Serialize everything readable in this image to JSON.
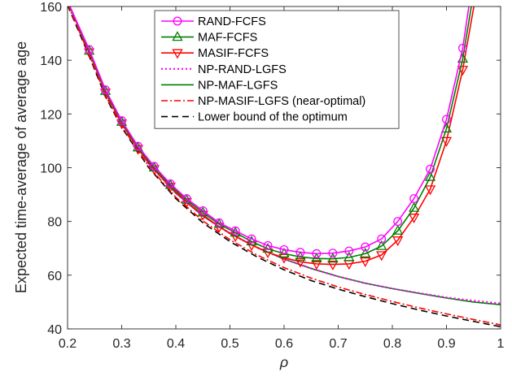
{
  "chart_data": {
    "type": "line",
    "title": "",
    "xlabel": "ρ",
    "ylabel": "Expected time-average of average age",
    "xlim": [
      0.2,
      1.0
    ],
    "ylim": [
      40,
      160
    ],
    "xticks": [
      "0.2",
      "0.3",
      "0.4",
      "0.5",
      "0.6",
      "0.7",
      "0.8",
      "0.9",
      "1"
    ],
    "yticks": [
      "40",
      "60",
      "80",
      "100",
      "120",
      "140",
      "160"
    ],
    "grid": false,
    "legend_position": "top-center",
    "series": [
      {
        "name": "RAND-FCFS",
        "color": "#ff00ff",
        "line": "solid",
        "marker": "circle",
        "x": [
          0.2,
          0.24,
          0.27,
          0.3,
          0.33,
          0.36,
          0.39,
          0.42,
          0.45,
          0.48,
          0.51,
          0.54,
          0.57,
          0.6,
          0.63,
          0.66,
          0.69,
          0.72,
          0.75,
          0.78,
          0.81,
          0.84,
          0.87,
          0.9,
          0.93,
          0.945
        ],
        "y": [
          162,
          144,
          129,
          117.5,
          108,
          100.5,
          94,
          88.5,
          84,
          79.5,
          76.5,
          73.5,
          71,
          69.5,
          68.5,
          68,
          68.2,
          69,
          70.5,
          73.5,
          80,
          88.5,
          99.5,
          118,
          144.5,
          165
        ]
      },
      {
        "name": "MAF-FCFS",
        "color": "#007f00",
        "line": "solid",
        "marker": "triangle-up",
        "x": [
          0.2,
          0.24,
          0.27,
          0.3,
          0.33,
          0.36,
          0.39,
          0.42,
          0.45,
          0.48,
          0.51,
          0.54,
          0.57,
          0.6,
          0.63,
          0.66,
          0.69,
          0.72,
          0.75,
          0.78,
          0.81,
          0.84,
          0.87,
          0.9,
          0.93,
          0.95
        ],
        "y": [
          162,
          143.5,
          128.5,
          117,
          107.5,
          100,
          93.5,
          88,
          83.3,
          79,
          75.8,
          72.5,
          69.8,
          68,
          66.8,
          66.2,
          66.1,
          66.6,
          68,
          70.8,
          76.5,
          85,
          96.5,
          114.5,
          140.5,
          165
        ]
      },
      {
        "name": "MASIF-FCFS",
        "color": "#ff0000",
        "line": "solid",
        "marker": "triangle-down",
        "x": [
          0.2,
          0.24,
          0.27,
          0.3,
          0.33,
          0.36,
          0.39,
          0.42,
          0.45,
          0.48,
          0.51,
          0.54,
          0.57,
          0.6,
          0.63,
          0.66,
          0.69,
          0.72,
          0.75,
          0.78,
          0.81,
          0.84,
          0.87,
          0.9,
          0.93,
          0.955
        ],
        "y": [
          162,
          143,
          128,
          116.5,
          107,
          99.5,
          93,
          87.3,
          82.5,
          78,
          74.5,
          71.2,
          68.5,
          66.5,
          65,
          64.2,
          64,
          64.2,
          65.2,
          67.5,
          73,
          81.5,
          92,
          110,
          136.5,
          165
        ]
      },
      {
        "name": "NP-RAND-LGFS",
        "color": "#ff00ff",
        "line": "dotted",
        "marker": "none",
        "x": [
          0.2,
          0.24,
          0.27,
          0.3,
          0.35,
          0.4,
          0.45,
          0.5,
          0.55,
          0.6,
          0.65,
          0.7,
          0.75,
          0.8,
          0.85,
          0.9,
          0.95,
          1.0
        ],
        "y": [
          162,
          143,
          128,
          116.5,
          101.5,
          90.5,
          82,
          75.5,
          70.3,
          66,
          62.5,
          59.5,
          57,
          55,
          53.3,
          51.7,
          50.5,
          49.5
        ]
      },
      {
        "name": "NP-MAF-LGFS",
        "color": "#007f00",
        "line": "solid",
        "marker": "none",
        "x": [
          0.2,
          0.24,
          0.27,
          0.3,
          0.35,
          0.4,
          0.45,
          0.5,
          0.55,
          0.6,
          0.65,
          0.7,
          0.75,
          0.8,
          0.85,
          0.9,
          0.95,
          1.0
        ],
        "y": [
          162,
          143,
          128,
          116.5,
          101.5,
          90.5,
          82,
          75.5,
          70.3,
          66,
          62.5,
          59.5,
          57,
          55,
          53.2,
          51.5,
          50,
          49
        ]
      },
      {
        "name": "NP-MASIF-LGFS (near-optimal)",
        "color": "#ff0000",
        "line": "dashdot",
        "marker": "none",
        "x": [
          0.2,
          0.24,
          0.27,
          0.3,
          0.35,
          0.4,
          0.45,
          0.5,
          0.55,
          0.6,
          0.65,
          0.7,
          0.75,
          0.8,
          0.85,
          0.9,
          0.95,
          1.0
        ],
        "y": [
          161,
          142,
          127,
          115.5,
          100.5,
          89,
          80.2,
          73.2,
          67.5,
          62.8,
          58.9,
          55.6,
          52.8,
          50.2,
          47.8,
          45.6,
          43.5,
          41.5
        ]
      },
      {
        "name": "Lower bound of the optimum",
        "color": "#000000",
        "line": "dashed",
        "marker": "none",
        "x": [
          0.2,
          0.24,
          0.27,
          0.3,
          0.35,
          0.4,
          0.45,
          0.5,
          0.55,
          0.6,
          0.65,
          0.7,
          0.75,
          0.8,
          0.85,
          0.9,
          0.95,
          1.0
        ],
        "y": [
          160.5,
          141.5,
          126.5,
          115,
          100,
          88.5,
          79.5,
          72.5,
          66.8,
          62,
          58,
          54.8,
          52,
          49.4,
          47,
          44.8,
          42.8,
          40.8
        ]
      }
    ]
  }
}
